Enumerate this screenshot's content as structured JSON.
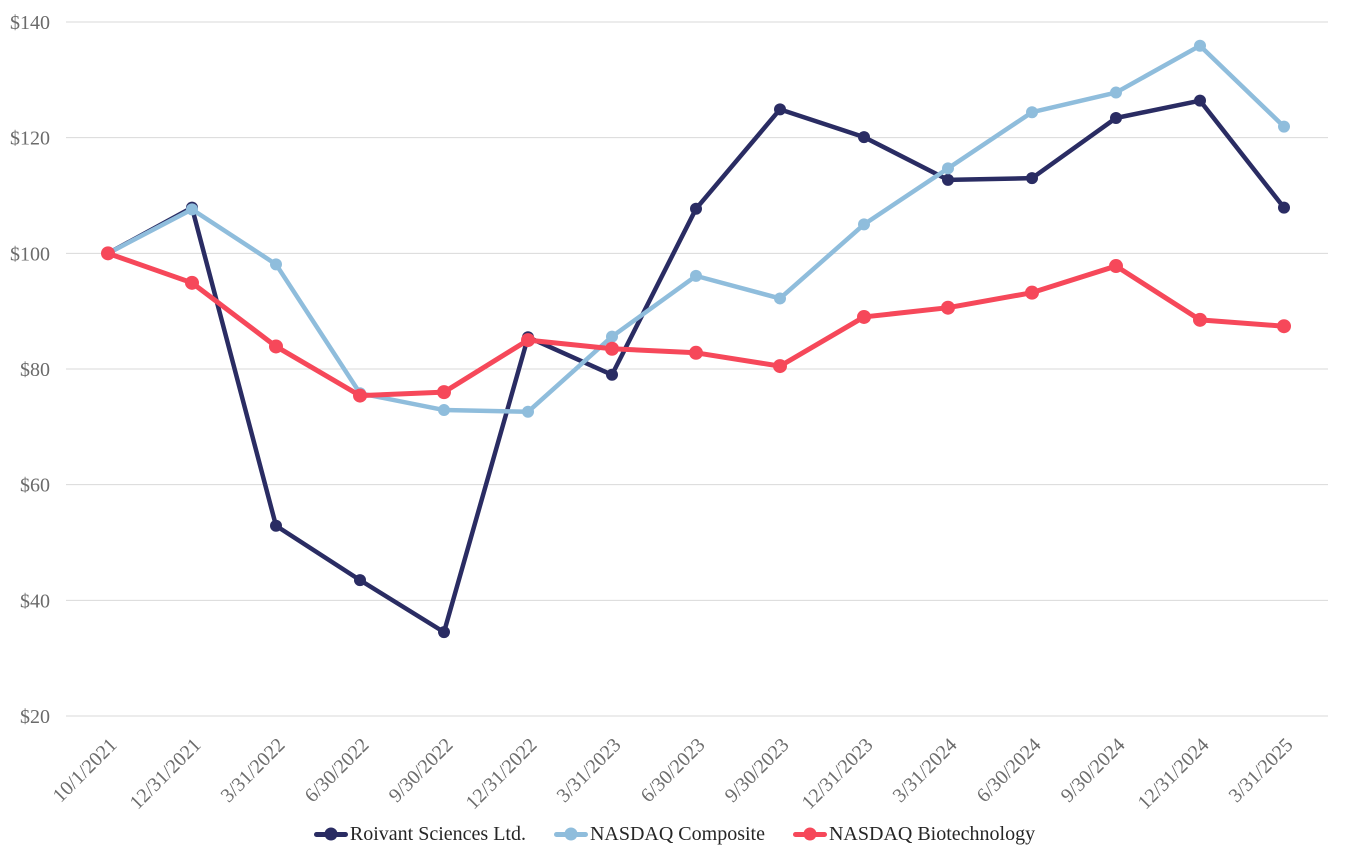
{
  "chart_data": {
    "type": "line",
    "title": "",
    "categories": [
      "10/1/2021",
      "12/31/2021",
      "3/31/2022",
      "6/30/2022",
      "9/30/2022",
      "12/31/2022",
      "3/31/2023",
      "6/30/2023",
      "9/30/2023",
      "12/31/2023",
      "3/31/2024",
      "6/30/2024",
      "9/30/2024",
      "12/31/2024",
      "3/31/2025"
    ],
    "series": [
      {
        "name": "Roivant Sciences Ltd.",
        "color": "#2a2c63",
        "values": [
          100.0,
          107.9,
          52.9,
          43.5,
          34.5,
          85.5,
          79.0,
          107.7,
          124.9,
          120.1,
          112.7,
          113.0,
          123.4,
          126.4,
          107.9
        ]
      },
      {
        "name": "NASDAQ Composite",
        "color": "#8fbddc",
        "values": [
          100.0,
          107.6,
          98.1,
          75.8,
          72.9,
          72.6,
          85.6,
          96.1,
          92.2,
          105.0,
          114.7,
          124.4,
          127.8,
          135.9,
          121.9
        ]
      },
      {
        "name": "NASDAQ Biotechnology",
        "color": "#f6485a",
        "values": [
          100.0,
          94.9,
          83.9,
          75.4,
          76.0,
          85.0,
          83.5,
          82.8,
          80.5,
          89.0,
          90.6,
          93.2,
          97.8,
          88.5,
          87.4
        ]
      }
    ],
    "y_ticks": [
      20,
      40,
      60,
      80,
      100,
      120,
      140
    ],
    "y_tick_prefix": "$",
    "ylim": [
      20,
      140
    ],
    "xlabel": "",
    "ylabel": "",
    "grid": true,
    "legend_position": "bottom",
    "axis_label_color": "#6b6b6b",
    "gridline_color": "#d9d9d9",
    "background": "#ffffff"
  }
}
